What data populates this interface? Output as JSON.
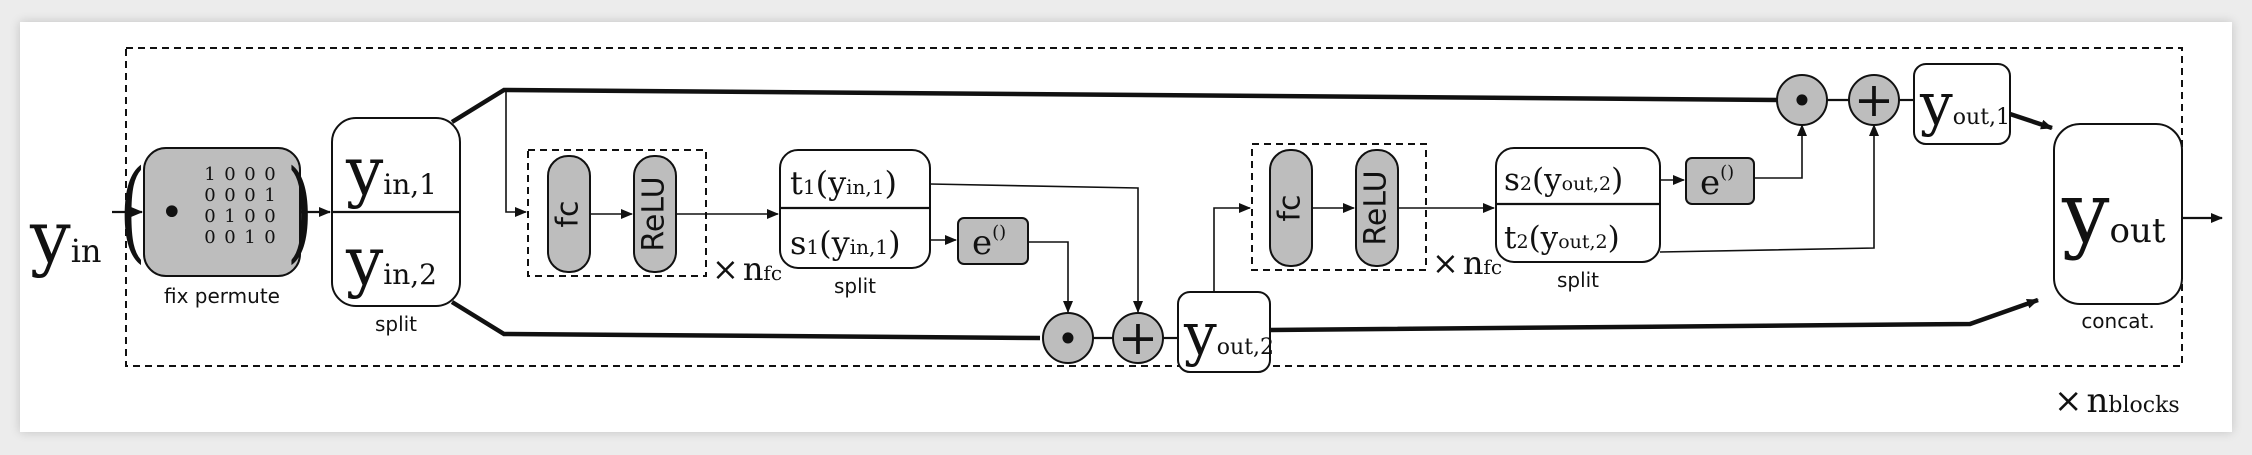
{
  "input": {
    "main": "y",
    "sub": "in"
  },
  "permute": {
    "label": "fix permute",
    "dot": "•",
    "matrix": [
      [
        "1",
        "0",
        "0",
        "0"
      ],
      [
        "0",
        "0",
        "0",
        "1"
      ],
      [
        "0",
        "1",
        "0",
        "0"
      ],
      [
        "0",
        "0",
        "1",
        "0"
      ]
    ]
  },
  "split1": {
    "top_main": "y",
    "top_sub": "in,1",
    "bottom_main": "y",
    "bottom_sub": "in,2",
    "label": "split"
  },
  "subnet1": {
    "fc_label": "fc",
    "relu_label": "ReLU",
    "repeat_x": "×",
    "repeat_n": "n",
    "repeat_sub": "fc"
  },
  "out1": {
    "top_fn": "t",
    "top_fn_sub": "1",
    "top_open": "(",
    "top_arg": "y",
    "top_arg_sub": "in,1",
    "top_close": ")",
    "bottom_fn": "s",
    "bottom_fn_sub": "1",
    "bottom_open": "(",
    "bottom_arg": "y",
    "bottom_arg_sub": "in,1",
    "bottom_close": ")",
    "label": "split"
  },
  "exp1": {
    "base": "e",
    "sup": "()"
  },
  "ops_lower": {
    "mul": "•",
    "add": "+"
  },
  "y_out2_box": {
    "main": "y",
    "sub": "out,2"
  },
  "subnet2": {
    "fc_label": "fc",
    "relu_label": "ReLU",
    "repeat_x": "×",
    "repeat_n": "n",
    "repeat_sub": "fc"
  },
  "out2": {
    "top_fn": "s",
    "top_fn_sub": "2",
    "top_open": "(",
    "top_arg": "y",
    "top_arg_sub": "out,2",
    "top_close": ")",
    "bottom_fn": "t",
    "bottom_fn_sub": "2",
    "bottom_open": "(",
    "bottom_arg": "y",
    "bottom_arg_sub": "out,2",
    "bottom_close": ")",
    "label": "split"
  },
  "exp2": {
    "base": "e",
    "sup": "()"
  },
  "ops_upper": {
    "mul": "•",
    "add": "+"
  },
  "y_out1_box": {
    "main": "y",
    "sub": "out,1"
  },
  "concat": {
    "main": "y",
    "sub": "out",
    "label": "concat."
  },
  "blocks": {
    "x": "×",
    "n": "n",
    "sub": "blocks"
  }
}
